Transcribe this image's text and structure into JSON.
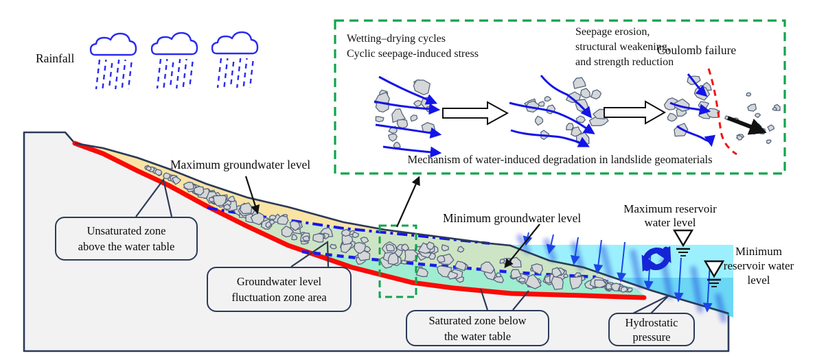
{
  "colors": {
    "slip_surface_red": "#fa0a05",
    "groundwater_blue": "#1414ee",
    "reservoir_upper_cyan": "#5fe7fc",
    "reservoir_lower_cyan": "#27c3f0",
    "unsaturated_yellow": "#f9e4a6",
    "fluctuation_green": "#cde5c4",
    "saturated_teal": "#9fedd0",
    "mechanism_border_green": "#12a44b",
    "outline_navy": "#2c3a57",
    "rain_blue": "#2a2af0"
  },
  "rainfall": {
    "label": "Rainfall"
  },
  "mechanism": {
    "stages": [
      {
        "lines": [
          "Wetting–drying cycles",
          "Cyclic seepage-induced stress"
        ]
      },
      {
        "lines": [
          "Seepage erosion,",
          "structural weakening,",
          "and strength reduction"
        ]
      },
      {
        "lines": [
          "Coulomb failure"
        ]
      }
    ],
    "caption": "Mechanism of water-induced degradation in landslide geomaterials"
  },
  "labels": {
    "max_groundwater": "Maximum groundwater level",
    "min_groundwater": "Minimum groundwater level",
    "max_reservoir": {
      "lines": [
        "Maximum reservoir",
        "water level"
      ]
    },
    "min_reservoir": {
      "lines": [
        "Minimum",
        "reservoir water",
        "level"
      ]
    }
  },
  "callouts": {
    "unsaturated": {
      "lines": [
        "Unsaturated zone",
        "above the water table"
      ]
    },
    "fluctuation": {
      "lines": [
        "Groundwater level",
        "fluctuation zone area"
      ]
    },
    "saturated": {
      "lines": [
        "Saturated zone below",
        "the water table"
      ]
    },
    "hydrostatic": {
      "lines": [
        "Hydrostatic",
        "pressure"
      ]
    }
  }
}
